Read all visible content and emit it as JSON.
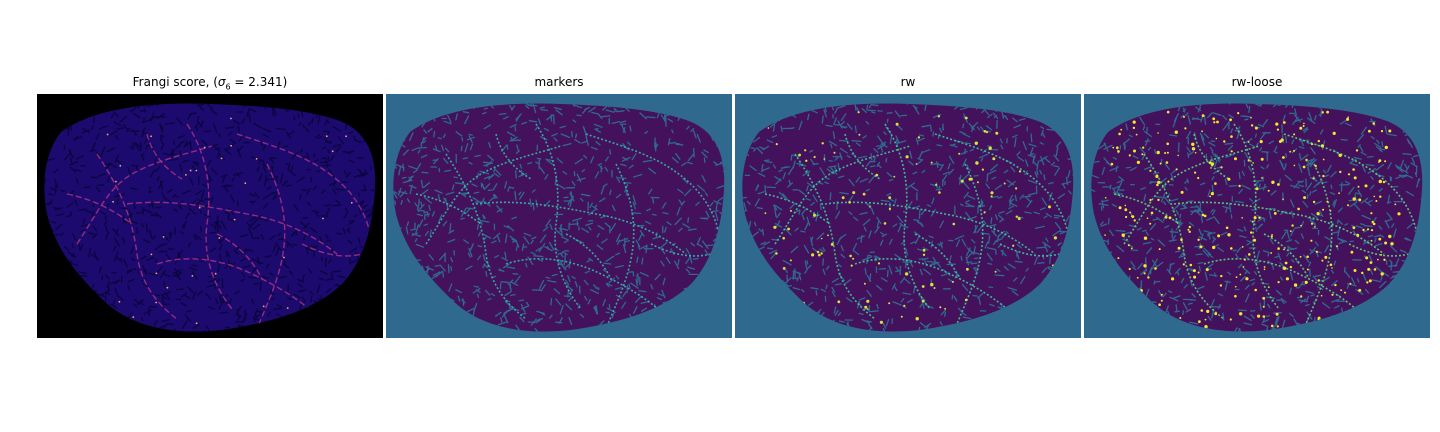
{
  "figure": {
    "panels": [
      {
        "id": "frangi",
        "title": "Frangi score, (",
        "title_sigma": "σ",
        "title_sigma_sub": "6",
        "title_tail": " = 2.341)",
        "background": "#000000",
        "tissue_color": "#1c0a6e",
        "texture_color": "#0a0540",
        "vessel_color": "#c1358a",
        "vessel_bright": "#f7a96a"
      },
      {
        "id": "markers",
        "title": "markers",
        "background": "#2f6a8e",
        "tissue_color": "#44125c",
        "texture_color": "#2f6a8e",
        "vessel_color": "#35b8a6",
        "vessel_bright": "#35b8a6"
      },
      {
        "id": "rw",
        "title": "rw",
        "background": "#2f6a8e",
        "tissue_color": "#44125c",
        "texture_color": "#2f6a8e",
        "vessel_color": "#3ec99b",
        "vessel_bright": "#d9e43a"
      },
      {
        "id": "rw-loose",
        "title": "rw-loose",
        "background": "#2f6a8e",
        "tissue_color": "#44125c",
        "texture_color": "#2f6a8e",
        "vessel_color": "#5bd481",
        "vessel_bright": "#f3ea2d"
      }
    ]
  }
}
